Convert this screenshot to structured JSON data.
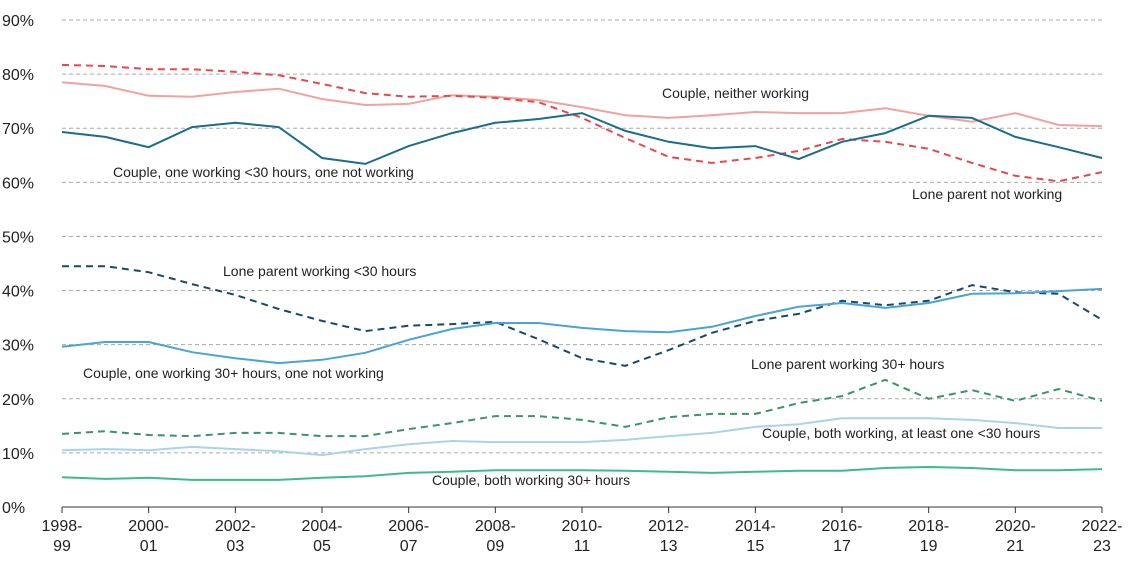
{
  "chart_data": {
    "type": "line",
    "categories": [
      "1998-99",
      null,
      "2000-01",
      null,
      "2002-03",
      null,
      "2004-05",
      null,
      "2006-07",
      null,
      "2008-09",
      null,
      "2010-11",
      null,
      "2012-13",
      null,
      "2014-15",
      null,
      "2016-17",
      null,
      "2018-19",
      null,
      "2020-21",
      null,
      "2022-23"
    ],
    "ylim": [
      0,
      90
    ],
    "yticks": [
      {
        "value": 0,
        "label": "0%"
      },
      {
        "value": 10,
        "label": "10%"
      },
      {
        "value": 20,
        "label": "20%"
      },
      {
        "value": 30,
        "label": "30%"
      },
      {
        "value": 40,
        "label": "40%"
      },
      {
        "value": 50,
        "label": "50%"
      },
      {
        "value": 60,
        "label": "60%"
      },
      {
        "value": 70,
        "label": "70%"
      },
      {
        "value": 80,
        "label": "80%"
      },
      {
        "value": 90,
        "label": "90%"
      }
    ],
    "grid": true,
    "series": [
      {
        "name": "Couple, neither working",
        "color": "#f2a29d",
        "style": "solid",
        "values": [
          78.5,
          77.8,
          76.0,
          75.8,
          76.7,
          77.3,
          75.4,
          74.3,
          74.5,
          76.1,
          75.8,
          75.2,
          73.9,
          72.4,
          71.9,
          72.4,
          73.0,
          72.8,
          72.8,
          73.7,
          72.3,
          71.2,
          72.8,
          70.6,
          70.4
        ]
      },
      {
        "name": "Lone parent not working",
        "color": "#e5484d",
        "style": "dashed",
        "values": [
          81.7,
          81.5,
          80.9,
          80.9,
          80.4,
          79.8,
          78.2,
          76.5,
          75.8,
          76.0,
          75.6,
          74.8,
          71.9,
          68.2,
          64.7,
          63.6,
          64.5,
          65.8,
          68.0,
          67.5,
          66.2,
          63.6,
          61.2,
          60.2,
          61.9
        ]
      },
      {
        "name": "Couple, one working <30 hours, one not working",
        "color": "#1b6d8c",
        "style": "solid",
        "values": [
          69.3,
          68.4,
          66.5,
          70.2,
          71.0,
          70.2,
          64.5,
          63.4,
          66.7,
          69.1,
          71.0,
          71.7,
          72.8,
          69.5,
          67.5,
          66.3,
          66.7,
          64.3,
          67.5,
          69.1,
          72.3,
          71.9,
          68.4,
          66.5,
          64.5
        ]
      },
      {
        "name": "Lone parent working <30 hours",
        "color": "#17496a",
        "style": "dashed",
        "values": [
          44.5,
          44.5,
          43.4,
          41.2,
          39.2,
          36.6,
          34.4,
          32.5,
          33.5,
          33.8,
          34.2,
          31.0,
          27.5,
          26.1,
          29.0,
          32.2,
          34.4,
          35.7,
          38.1,
          37.3,
          38.1,
          41.0,
          39.7,
          39.4,
          34.6
        ]
      },
      {
        "name": "Couple, one working 30+ hours, one not working",
        "color": "#4aa3d6",
        "style": "solid",
        "values": [
          29.6,
          30.5,
          30.5,
          28.6,
          27.5,
          26.6,
          27.2,
          28.5,
          30.9,
          32.9,
          34.0,
          34.0,
          33.1,
          32.5,
          32.3,
          33.3,
          35.3,
          37.0,
          37.7,
          36.8,
          37.7,
          39.4,
          39.5,
          39.9,
          40.3
        ]
      },
      {
        "name": "Lone parent working 30+ hours",
        "color": "#3a9469",
        "style": "dashed",
        "values": [
          13.5,
          14.0,
          13.3,
          13.1,
          13.7,
          13.7,
          13.1,
          13.1,
          14.4,
          15.5,
          16.8,
          16.8,
          16.1,
          14.8,
          16.6,
          17.2,
          17.2,
          19.2,
          20.5,
          23.5,
          20.0,
          21.6,
          19.6,
          21.8,
          19.6
        ]
      },
      {
        "name": "Couple, both working, at least one <30 hours",
        "color": "#a8d3ea",
        "style": "solid",
        "values": [
          10.5,
          10.7,
          10.5,
          11.1,
          10.7,
          10.3,
          9.6,
          10.7,
          11.6,
          12.2,
          12.0,
          12.0,
          12.0,
          12.4,
          13.1,
          13.7,
          14.8,
          15.3,
          16.4,
          16.4,
          16.4,
          16.1,
          15.5,
          14.6,
          14.6
        ]
      },
      {
        "name": "Couple, both working 30+ hours",
        "color": "#3dbb8a",
        "style": "solid",
        "values": [
          5.5,
          5.2,
          5.4,
          5.0,
          5.0,
          5.0,
          5.4,
          5.7,
          6.3,
          6.5,
          6.8,
          6.8,
          6.8,
          6.7,
          6.5,
          6.3,
          6.5,
          6.7,
          6.7,
          7.2,
          7.4,
          7.2,
          6.8,
          6.8,
          7.0
        ]
      }
    ]
  }
}
